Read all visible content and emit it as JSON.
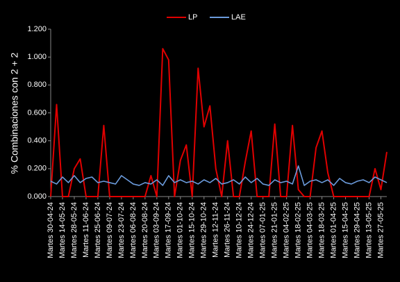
{
  "chart_data": {
    "type": "line",
    "y_label": "% Combinaciones con 2 + 2",
    "legend": "top",
    "categories": [
      "Martes 30-04-24",
      null,
      "Martes 14-05-24",
      null,
      "Martes 28-05-24",
      null,
      "Martes 11-06-24",
      null,
      "Martes 25-06-24",
      null,
      "Martes 09-07-24",
      null,
      "Martes 23-07-24",
      null,
      "Martes 06-08-24",
      null,
      "Martes 20-08-24",
      null,
      "Martes 03-09-24",
      null,
      "Martes 17-09-24",
      null,
      "Martes 01-10-24",
      null,
      "Martes 15-10-24",
      null,
      "Martes 29-10-24",
      null,
      "Martes 12-11-24",
      null,
      "Martes 26-11-24",
      null,
      "Martes 10-12-24",
      null,
      "Martes 24-12-24",
      null,
      "Martes 07-01-25",
      null,
      "Martes 21-01-25",
      null,
      "Martes 04-02-25",
      null,
      "Martes 18-02-25",
      null,
      "Martes 04-03-25",
      null,
      "Martes 18-03-25",
      null,
      "Martes 01-04-25",
      null,
      "Martes 15-04-25",
      null,
      "Martes 29-04-25",
      null,
      "Martes 13-05-25",
      null,
      "Martes 27-05-25",
      null
    ],
    "series": [
      {
        "name": "LP",
        "color": "#e00000",
        "values": [
          0,
          0.66,
          0,
          0,
          0.2,
          0.27,
          0,
          0,
          0,
          0.51,
          0,
          0,
          0,
          0,
          0,
          0,
          0,
          0.15,
          0,
          1.06,
          0.98,
          0,
          0.26,
          0.37,
          0,
          0.92,
          0.5,
          0.65,
          0.2,
          0,
          0.4,
          0,
          0,
          0.25,
          0.47,
          0,
          0,
          0,
          0.52,
          0,
          0,
          0.51,
          0.05,
          0,
          0,
          0.35,
          0.47,
          0.17,
          0,
          0,
          0,
          0,
          0,
          0,
          0,
          0.2,
          0.05,
          0.32
        ]
      },
      {
        "name": "LAE",
        "color": "#6b9bdc",
        "values": [
          0.11,
          0.09,
          0.14,
          0.1,
          0.15,
          0.1,
          0.13,
          0.14,
          0.1,
          0.11,
          0.1,
          0.09,
          0.15,
          0.12,
          0.09,
          0.08,
          0.1,
          0.09,
          0.12,
          0.08,
          0.15,
          0.1,
          0.12,
          0.1,
          0.11,
          0.09,
          0.12,
          0.1,
          0.13,
          0.09,
          0.1,
          0.12,
          0.09,
          0.14,
          0.1,
          0.13,
          0.09,
          0.08,
          0.12,
          0.1,
          0.11,
          0.09,
          0.22,
          0.08,
          0.11,
          0.12,
          0.1,
          0.12,
          0.08,
          0.13,
          0.1,
          0.09,
          0.11,
          0.12,
          0.1,
          0.14,
          0.12,
          0.1
        ]
      }
    ],
    "ylim": [
      0,
      1.2
    ],
    "yticks": [
      {
        "value": 0,
        "label": "0.000"
      },
      {
        "value": 0.2,
        "label": "0.200"
      },
      {
        "value": 0.4,
        "label": "0.400"
      },
      {
        "value": 0.6,
        "label": "0.600"
      },
      {
        "value": 0.8,
        "label": "0.800"
      },
      {
        "value": 1.0,
        "label": "1.000"
      },
      {
        "value": 1.2,
        "label": "1.200"
      }
    ]
  }
}
